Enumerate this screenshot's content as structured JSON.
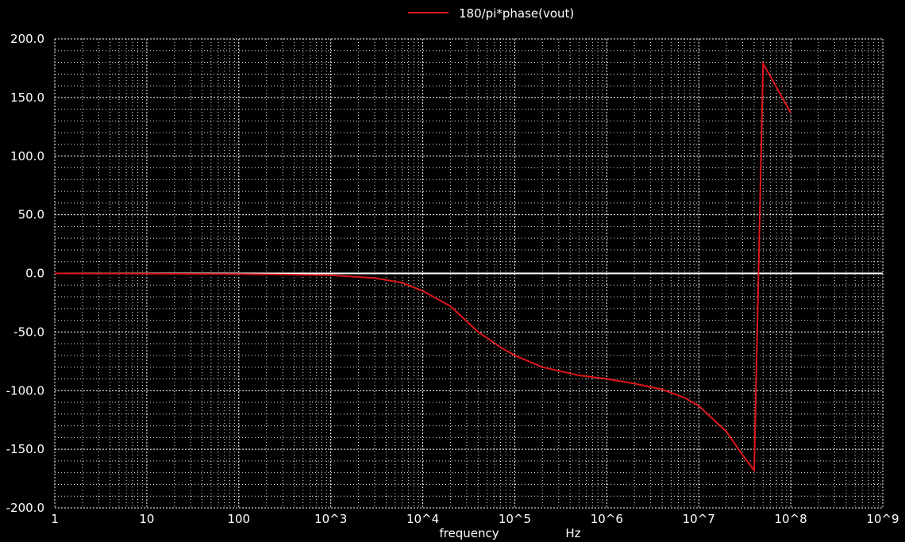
{
  "chart_data": {
    "type": "line",
    "xscale": "log",
    "xlim": [
      1,
      1000000000
    ],
    "ylim": [
      -200,
      200
    ],
    "x_ticks": [
      "1",
      "10",
      "100",
      "10^3",
      "10^4",
      "10^5",
      "10^6",
      "10^7",
      "10^8",
      "10^9"
    ],
    "y_ticks": [
      "200.0",
      "150.0",
      "100.0",
      "50.0",
      "0.0",
      "-50.0",
      "-100.0",
      "-150.0",
      "-200.0"
    ],
    "xlabel": "frequency",
    "xunit": "Hz",
    "grid": true,
    "legend_position": "top-center",
    "colors": {
      "background": "#000000",
      "grid": "#ffffff",
      "series": "#e0161b"
    },
    "series": [
      {
        "name": "180/pi*phase(vout)",
        "x": [
          1,
          100,
          1000,
          3000,
          6000,
          10000,
          20000,
          40000,
          70000,
          100000,
          200000,
          500000,
          1000000,
          2000000,
          4000000,
          7000000,
          10000000,
          20000000,
          30000000,
          40000000,
          50000000,
          100000000
        ],
        "y": [
          0,
          -0.5,
          -1.5,
          -4,
          -8,
          -15,
          -28,
          -50,
          -63,
          -70,
          -80,
          -87,
          -90,
          -94,
          -99,
          -106,
          -113,
          -135,
          -155,
          -168,
          179,
          137
        ]
      }
    ]
  }
}
